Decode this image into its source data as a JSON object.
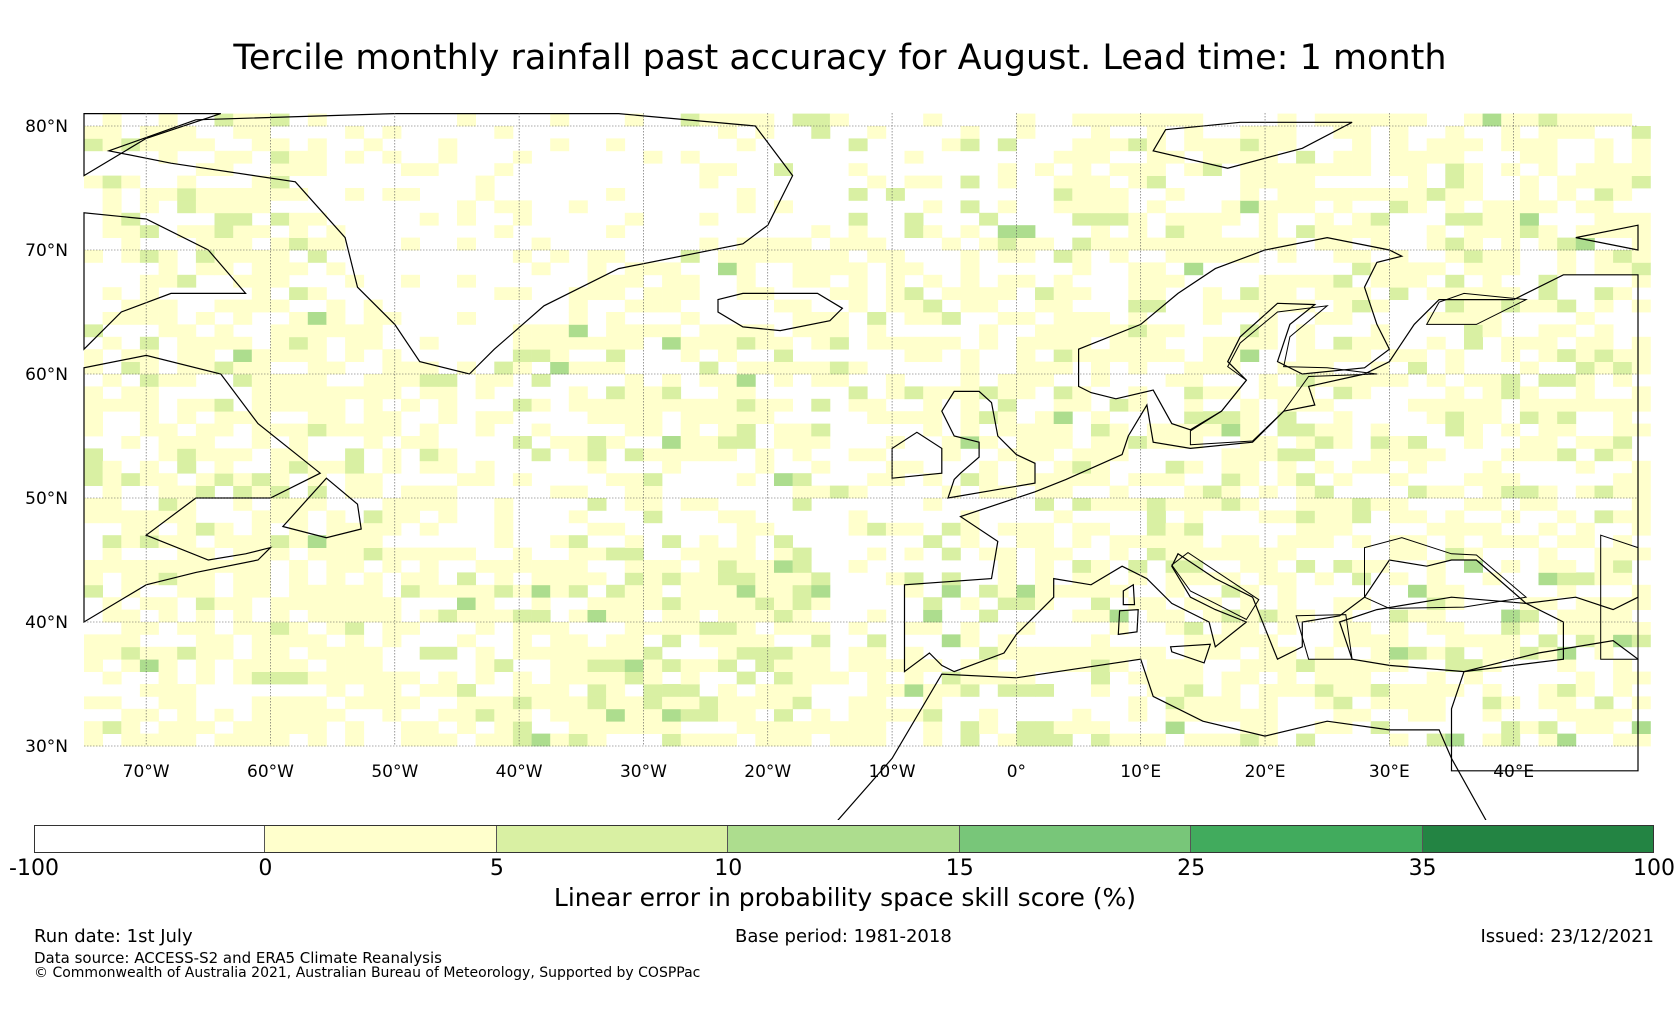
{
  "title": "Tercile monthly rainfall past accuracy for August. Lead time: 1 month",
  "map": {
    "lat_ticks": [
      {
        "value": 80,
        "label": "80°N"
      },
      {
        "value": 70,
        "label": "70°N"
      },
      {
        "value": 60,
        "label": "60°N"
      },
      {
        "value": 50,
        "label": "50°N"
      },
      {
        "value": 40,
        "label": "40°N"
      },
      {
        "value": 30,
        "label": "30°N"
      }
    ],
    "lon_ticks": [
      {
        "value": -70,
        "label": "70°W"
      },
      {
        "value": -60,
        "label": "60°W"
      },
      {
        "value": -50,
        "label": "50°W"
      },
      {
        "value": -40,
        "label": "40°W"
      },
      {
        "value": -30,
        "label": "30°W"
      },
      {
        "value": -20,
        "label": "20°W"
      },
      {
        "value": -10,
        "label": "10°W"
      },
      {
        "value": 0,
        "label": "0°"
      },
      {
        "value": 10,
        "label": "10°E"
      },
      {
        "value": 20,
        "label": "20°E"
      },
      {
        "value": 30,
        "label": "30°E"
      },
      {
        "value": 40,
        "label": "40°E"
      }
    ],
    "extent": {
      "lon_min": -75,
      "lon_max": 50,
      "lat_min": 30,
      "lat_max": 81
    },
    "gridlines": true,
    "coastline_color": "#000000"
  },
  "colorbar": {
    "label": "Linear error in probability space skill score (%)",
    "ticks": [
      "-100",
      "0",
      "5",
      "10",
      "15",
      "25",
      "35",
      "100"
    ],
    "bins": [
      {
        "from": "-100",
        "to": "0",
        "color": "#ffffff"
      },
      {
        "from": "0",
        "to": "5",
        "color": "#ffffcc"
      },
      {
        "from": "5",
        "to": "10",
        "color": "#d9f0a3"
      },
      {
        "from": "10",
        "to": "15",
        "color": "#addd8e"
      },
      {
        "from": "15",
        "to": "25",
        "color": "#78c679"
      },
      {
        "from": "25",
        "to": "35",
        "color": "#41ab5d"
      },
      {
        "from": "35",
        "to": "100",
        "color": "#238443"
      }
    ]
  },
  "footer": {
    "run_date": "Run date: 1st July",
    "base_period": "Base period: 1981-2018",
    "issued": "Issued: 23/12/2021",
    "data_source": "Data source: ACCESS-S2 and ERA5 Climate Reanalysis",
    "copyright": "© Commonwealth of Australia 2021, Australian Bureau of Meteorology, Supported by COSPPac"
  }
}
